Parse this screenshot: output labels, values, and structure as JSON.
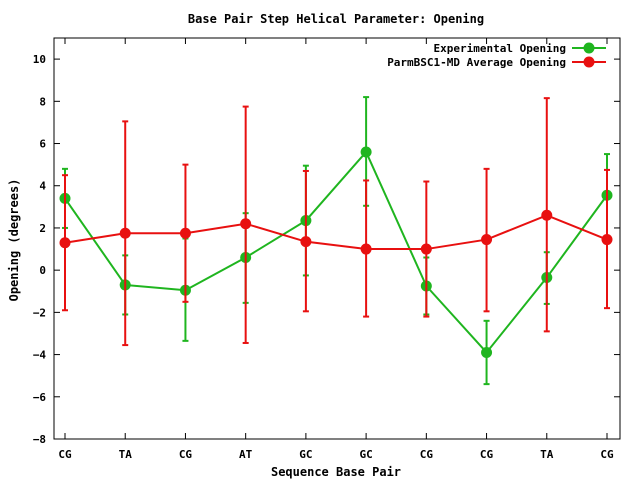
{
  "chart_data": {
    "type": "line",
    "title": "Base Pair Step Helical Parameter: Opening",
    "xlabel": "Sequence Base Pair",
    "ylabel": "Opening (degrees)",
    "categories": [
      "CG",
      "TA",
      "CG",
      "AT",
      "GC",
      "GC",
      "CG",
      "CG",
      "TA",
      "CG"
    ],
    "ylim": [
      -8,
      11
    ],
    "yticks": [
      -8,
      -6,
      -4,
      -2,
      0,
      2,
      4,
      6,
      8,
      10
    ],
    "legend_position": "top-right",
    "series": [
      {
        "name": "Experimental Opening",
        "color": "#1fb51f",
        "values": [
          3.4,
          -0.7,
          -0.95,
          0.6,
          2.35,
          5.6,
          -0.75,
          -3.9,
          -0.35,
          3.55
        ],
        "err_low": [
          2.0,
          -2.1,
          -3.35,
          -1.55,
          -0.25,
          3.05,
          -2.1,
          -5.4,
          -1.6,
          1.6
        ],
        "err_high": [
          4.8,
          0.7,
          1.5,
          2.7,
          4.95,
          8.2,
          0.6,
          -2.4,
          0.85,
          5.5
        ]
      },
      {
        "name": "ParmBSC1-MD Average Opening",
        "color": "#e81010",
        "values": [
          1.3,
          1.75,
          1.75,
          2.2,
          1.35,
          1.0,
          1.0,
          1.45,
          2.6,
          1.45
        ],
        "err_low": [
          -1.9,
          -3.55,
          -1.5,
          -3.45,
          -1.95,
          -2.2,
          -2.2,
          -1.95,
          -2.9,
          -1.8
        ],
        "err_high": [
          4.5,
          7.05,
          5.0,
          7.75,
          4.7,
          4.25,
          4.2,
          4.8,
          8.15,
          4.75
        ]
      }
    ]
  }
}
